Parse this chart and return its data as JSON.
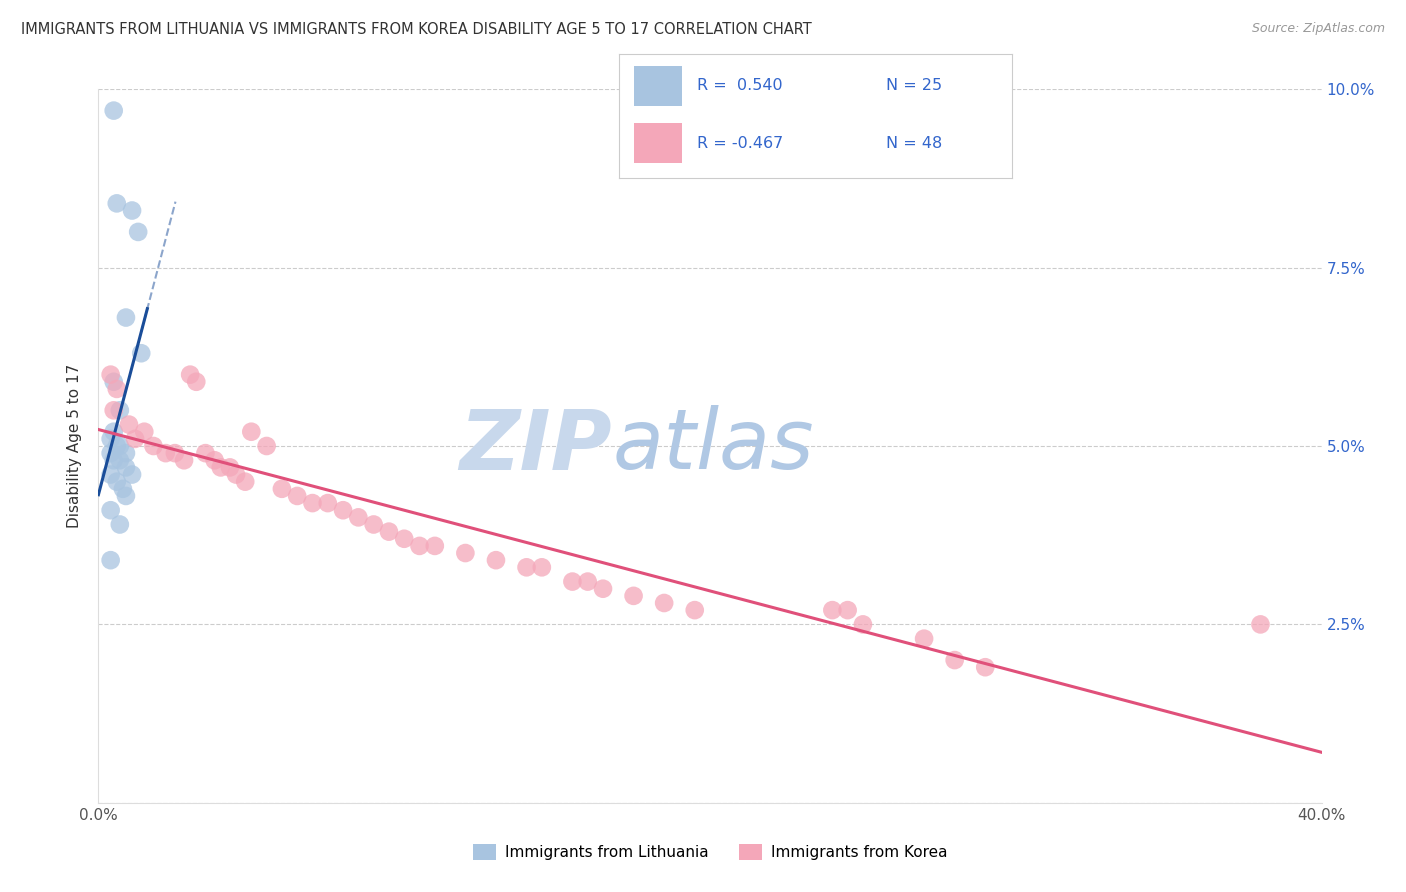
{
  "title": "IMMIGRANTS FROM LITHUANIA VS IMMIGRANTS FROM KOREA DISABILITY AGE 5 TO 17 CORRELATION CHART",
  "source": "Source: ZipAtlas.com",
  "ylabel": "Disability Age 5 to 17",
  "x_min": 0.0,
  "x_max": 0.4,
  "y_min": 0.0,
  "y_max": 0.1,
  "x_ticks": [
    0.0,
    0.05,
    0.1,
    0.15,
    0.2,
    0.25,
    0.3,
    0.35,
    0.4
  ],
  "y_ticks": [
    0.0,
    0.025,
    0.05,
    0.075,
    0.1
  ],
  "y_tick_labels_right": [
    "",
    "2.5%",
    "5.0%",
    "7.5%",
    "10.0%"
  ],
  "lithuania_color": "#a8c4e0",
  "korea_color": "#f4a7b9",
  "lithuania_line_color": "#1a4d99",
  "korea_line_color": "#e0507a",
  "legend_r_color": "#3366cc",
  "watermark_zip_color": "#c5d8ee",
  "watermark_atlas_color": "#b8d0e8",
  "lithuania_points": [
    [
      0.005,
      0.097
    ],
    [
      0.006,
      0.084
    ],
    [
      0.011,
      0.083
    ],
    [
      0.013,
      0.08
    ],
    [
      0.009,
      0.068
    ],
    [
      0.014,
      0.063
    ],
    [
      0.005,
      0.059
    ],
    [
      0.007,
      0.055
    ],
    [
      0.005,
      0.052
    ],
    [
      0.004,
      0.051
    ],
    [
      0.006,
      0.05
    ],
    [
      0.007,
      0.05
    ],
    [
      0.009,
      0.049
    ],
    [
      0.004,
      0.049
    ],
    [
      0.005,
      0.048
    ],
    [
      0.007,
      0.048
    ],
    [
      0.009,
      0.047
    ],
    [
      0.011,
      0.046
    ],
    [
      0.004,
      0.046
    ],
    [
      0.006,
      0.045
    ],
    [
      0.008,
      0.044
    ],
    [
      0.009,
      0.043
    ],
    [
      0.004,
      0.041
    ],
    [
      0.007,
      0.039
    ],
    [
      0.004,
      0.034
    ]
  ],
  "korea_points": [
    [
      0.004,
      0.06
    ],
    [
      0.005,
      0.055
    ],
    [
      0.006,
      0.058
    ],
    [
      0.01,
      0.053
    ],
    [
      0.012,
      0.051
    ],
    [
      0.015,
      0.052
    ],
    [
      0.018,
      0.05
    ],
    [
      0.022,
      0.049
    ],
    [
      0.025,
      0.049
    ],
    [
      0.028,
      0.048
    ],
    [
      0.03,
      0.06
    ],
    [
      0.032,
      0.059
    ],
    [
      0.035,
      0.049
    ],
    [
      0.038,
      0.048
    ],
    [
      0.04,
      0.047
    ],
    [
      0.043,
      0.047
    ],
    [
      0.045,
      0.046
    ],
    [
      0.048,
      0.045
    ],
    [
      0.05,
      0.052
    ],
    [
      0.055,
      0.05
    ],
    [
      0.06,
      0.044
    ],
    [
      0.065,
      0.043
    ],
    [
      0.07,
      0.042
    ],
    [
      0.075,
      0.042
    ],
    [
      0.08,
      0.041
    ],
    [
      0.085,
      0.04
    ],
    [
      0.09,
      0.039
    ],
    [
      0.095,
      0.038
    ],
    [
      0.1,
      0.037
    ],
    [
      0.105,
      0.036
    ],
    [
      0.11,
      0.036
    ],
    [
      0.12,
      0.035
    ],
    [
      0.13,
      0.034
    ],
    [
      0.14,
      0.033
    ],
    [
      0.145,
      0.033
    ],
    [
      0.155,
      0.031
    ],
    [
      0.16,
      0.031
    ],
    [
      0.165,
      0.03
    ],
    [
      0.175,
      0.029
    ],
    [
      0.185,
      0.028
    ],
    [
      0.195,
      0.027
    ],
    [
      0.24,
      0.027
    ],
    [
      0.245,
      0.027
    ],
    [
      0.25,
      0.025
    ],
    [
      0.27,
      0.023
    ],
    [
      0.28,
      0.02
    ],
    [
      0.29,
      0.019
    ],
    [
      0.38,
      0.025
    ]
  ]
}
